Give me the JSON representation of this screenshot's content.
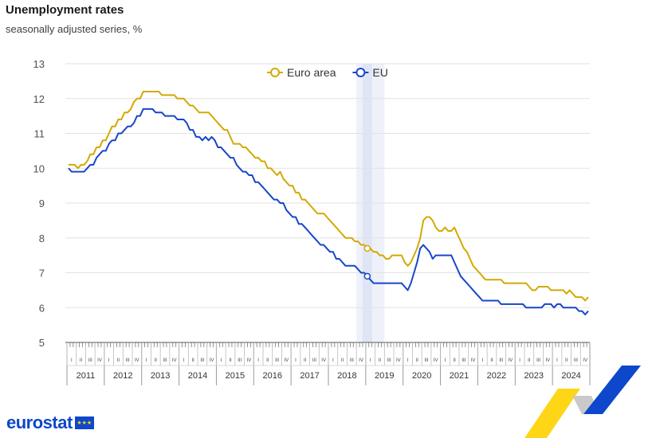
{
  "header": {
    "title": "Unemployment rates",
    "subtitle": "seasonally adjusted series, %"
  },
  "branding": {
    "logo_text": "eurostat"
  },
  "colors": {
    "euro_area": "#d4a900",
    "eu": "#1746c9",
    "grid": "#e2e2e2",
    "highlight_band": "#e8edf8"
  },
  "chart_data": {
    "type": "line",
    "title": "Unemployment rates",
    "subtitle": "seasonally adjusted series, %",
    "ylim": [
      5,
      13
    ],
    "y_ticks": [
      5,
      6,
      7,
      8,
      9,
      10,
      11,
      12,
      13
    ],
    "grid": true,
    "legend_position": "top-center",
    "years": [
      "2011",
      "2012",
      "2013",
      "2014",
      "2015",
      "2016",
      "2017",
      "2018",
      "2019",
      "2020",
      "2021",
      "2022",
      "2023",
      "2024"
    ],
    "quarters": [
      "I",
      "II",
      "III",
      "IV"
    ],
    "x_start": "2011-01",
    "x_end": "2024-12",
    "highlight": {
      "period": "2019-01",
      "band_from": "2018-10",
      "band_to": "2019-06"
    },
    "series": [
      {
        "name": "Euro area",
        "color": "#d4a900",
        "points": [
          [
            "2011-01",
            10.1
          ],
          [
            "2011-03",
            10.1
          ],
          [
            "2011-04",
            10.0
          ],
          [
            "2011-05",
            10.1
          ],
          [
            "2011-06",
            10.1
          ],
          [
            "2011-07",
            10.2
          ],
          [
            "2011-08",
            10.4
          ],
          [
            "2011-10",
            10.6
          ],
          [
            "2011-12",
            10.8
          ],
          [
            "2012-02",
            11.0
          ],
          [
            "2012-03",
            11.2
          ],
          [
            "2012-05",
            11.4
          ],
          [
            "2012-07",
            11.6
          ],
          [
            "2012-08",
            11.6
          ],
          [
            "2012-09",
            11.7
          ],
          [
            "2012-10",
            11.9
          ],
          [
            "2012-11",
            12.0
          ],
          [
            "2012-12",
            12.0
          ],
          [
            "2013-01",
            12.2
          ],
          [
            "2013-06",
            12.2
          ],
          [
            "2013-07",
            12.1
          ],
          [
            "2013-11",
            12.1
          ],
          [
            "2013-12",
            12.0
          ],
          [
            "2014-02",
            12.0
          ],
          [
            "2014-03",
            11.9
          ],
          [
            "2014-04",
            11.8
          ],
          [
            "2014-05",
            11.8
          ],
          [
            "2014-06",
            11.7
          ],
          [
            "2014-07",
            11.6
          ],
          [
            "2014-10",
            11.6
          ],
          [
            "2014-11",
            11.5
          ],
          [
            "2014-12",
            11.4
          ],
          [
            "2015-01",
            11.3
          ],
          [
            "2015-02",
            11.2
          ],
          [
            "2015-03",
            11.1
          ],
          [
            "2015-04",
            11.1
          ],
          [
            "2015-05",
            10.9
          ],
          [
            "2015-06",
            10.7
          ],
          [
            "2015-08",
            10.7
          ],
          [
            "2015-09",
            10.6
          ],
          [
            "2015-10",
            10.6
          ],
          [
            "2015-11",
            10.5
          ],
          [
            "2015-12",
            10.4
          ],
          [
            "2016-01",
            10.3
          ],
          [
            "2016-02",
            10.3
          ],
          [
            "2016-03",
            10.2
          ],
          [
            "2016-04",
            10.2
          ],
          [
            "2016-05",
            10.0
          ],
          [
            "2016-06",
            10.0
          ],
          [
            "2016-07",
            9.9
          ],
          [
            "2016-08",
            9.8
          ],
          [
            "2016-09",
            9.9
          ],
          [
            "2016-10",
            9.7
          ],
          [
            "2016-11",
            9.6
          ],
          [
            "2016-12",
            9.5
          ],
          [
            "2017-01",
            9.5
          ],
          [
            "2017-02",
            9.3
          ],
          [
            "2017-03",
            9.3
          ],
          [
            "2017-04",
            9.1
          ],
          [
            "2017-05",
            9.1
          ],
          [
            "2017-06",
            9.0
          ],
          [
            "2017-07",
            8.9
          ],
          [
            "2017-08",
            8.8
          ],
          [
            "2017-09",
            8.7
          ],
          [
            "2017-11",
            8.7
          ],
          [
            "2017-12",
            8.6
          ],
          [
            "2018-01",
            8.5
          ],
          [
            "2018-02",
            8.4
          ],
          [
            "2018-03",
            8.3
          ],
          [
            "2018-04",
            8.2
          ],
          [
            "2018-05",
            8.1
          ],
          [
            "2018-06",
            8.0
          ],
          [
            "2018-08",
            8.0
          ],
          [
            "2018-09",
            7.9
          ],
          [
            "2018-10",
            7.9
          ],
          [
            "2018-11",
            7.8
          ],
          [
            "2018-12",
            7.8
          ],
          [
            "2019-01",
            7.7
          ],
          [
            "2019-02",
            7.7
          ],
          [
            "2019-03",
            7.6
          ],
          [
            "2019-04",
            7.6
          ],
          [
            "2019-05",
            7.5
          ],
          [
            "2019-06",
            7.5
          ],
          [
            "2019-07",
            7.4
          ],
          [
            "2019-08",
            7.4
          ],
          [
            "2019-09",
            7.5
          ],
          [
            "2019-12",
            7.5
          ],
          [
            "2020-01",
            7.3
          ],
          [
            "2020-02",
            7.2
          ],
          [
            "2020-03",
            7.3
          ],
          [
            "2020-04",
            7.5
          ],
          [
            "2020-05",
            7.7
          ],
          [
            "2020-06",
            8.0
          ],
          [
            "2020-07",
            8.5
          ],
          [
            "2020-08",
            8.6
          ],
          [
            "2020-09",
            8.6
          ],
          [
            "2020-10",
            8.5
          ],
          [
            "2020-11",
            8.3
          ],
          [
            "2020-12",
            8.2
          ],
          [
            "2021-01",
            8.2
          ],
          [
            "2021-02",
            8.3
          ],
          [
            "2021-03",
            8.2
          ],
          [
            "2021-04",
            8.2
          ],
          [
            "2021-05",
            8.3
          ],
          [
            "2021-06",
            8.1
          ],
          [
            "2021-07",
            7.9
          ],
          [
            "2021-08",
            7.7
          ],
          [
            "2021-09",
            7.6
          ],
          [
            "2021-10",
            7.4
          ],
          [
            "2021-11",
            7.2
          ],
          [
            "2021-12",
            7.1
          ],
          [
            "2022-01",
            7.0
          ],
          [
            "2022-02",
            6.9
          ],
          [
            "2022-03",
            6.8
          ],
          [
            "2022-08",
            6.8
          ],
          [
            "2022-09",
            6.7
          ],
          [
            "2023-04",
            6.7
          ],
          [
            "2023-05",
            6.6
          ],
          [
            "2023-06",
            6.5
          ],
          [
            "2023-07",
            6.5
          ],
          [
            "2023-08",
            6.6
          ],
          [
            "2023-11",
            6.6
          ],
          [
            "2023-12",
            6.5
          ],
          [
            "2024-04",
            6.5
          ],
          [
            "2024-05",
            6.4
          ],
          [
            "2024-06",
            6.5
          ],
          [
            "2024-07",
            6.4
          ],
          [
            "2024-08",
            6.3
          ],
          [
            "2024-10",
            6.3
          ],
          [
            "2024-11",
            6.2
          ],
          [
            "2024-12",
            6.3
          ]
        ]
      },
      {
        "name": "EU",
        "color": "#1746c9",
        "points": [
          [
            "2011-01",
            10.0
          ],
          [
            "2011-02",
            9.9
          ],
          [
            "2011-06",
            9.9
          ],
          [
            "2011-07",
            10.0
          ],
          [
            "2011-08",
            10.1
          ],
          [
            "2011-10",
            10.3
          ],
          [
            "2011-11",
            10.4
          ],
          [
            "2011-12",
            10.5
          ],
          [
            "2012-01",
            10.5
          ],
          [
            "2012-02",
            10.7
          ],
          [
            "2012-03",
            10.8
          ],
          [
            "2012-05",
            11.0
          ],
          [
            "2012-06",
            11.0
          ],
          [
            "2012-07",
            11.1
          ],
          [
            "2012-08",
            11.2
          ],
          [
            "2012-09",
            11.2
          ],
          [
            "2012-10",
            11.3
          ],
          [
            "2012-11",
            11.5
          ],
          [
            "2012-12",
            11.5
          ],
          [
            "2013-01",
            11.7
          ],
          [
            "2013-04",
            11.7
          ],
          [
            "2013-05",
            11.6
          ],
          [
            "2013-07",
            11.6
          ],
          [
            "2013-08",
            11.5
          ],
          [
            "2013-11",
            11.5
          ],
          [
            "2013-12",
            11.4
          ],
          [
            "2014-02",
            11.4
          ],
          [
            "2014-03",
            11.3
          ],
          [
            "2014-04",
            11.1
          ],
          [
            "2014-05",
            11.1
          ],
          [
            "2014-06",
            10.9
          ],
          [
            "2014-07",
            10.9
          ],
          [
            "2014-08",
            10.8
          ],
          [
            "2014-09",
            10.9
          ],
          [
            "2014-10",
            10.8
          ],
          [
            "2014-11",
            10.9
          ],
          [
            "2014-12",
            10.8
          ],
          [
            "2015-01",
            10.6
          ],
          [
            "2015-02",
            10.6
          ],
          [
            "2015-03",
            10.5
          ],
          [
            "2015-04",
            10.4
          ],
          [
            "2015-05",
            10.3
          ],
          [
            "2015-06",
            10.3
          ],
          [
            "2015-07",
            10.1
          ],
          [
            "2015-08",
            10.0
          ],
          [
            "2015-09",
            9.9
          ],
          [
            "2015-10",
            9.9
          ],
          [
            "2015-11",
            9.8
          ],
          [
            "2015-12",
            9.8
          ],
          [
            "2016-01",
            9.6
          ],
          [
            "2016-02",
            9.6
          ],
          [
            "2016-03",
            9.5
          ],
          [
            "2016-04",
            9.4
          ],
          [
            "2016-05",
            9.3
          ],
          [
            "2016-06",
            9.2
          ],
          [
            "2016-07",
            9.1
          ],
          [
            "2016-08",
            9.1
          ],
          [
            "2016-09",
            9.0
          ],
          [
            "2016-10",
            9.0
          ],
          [
            "2016-11",
            8.8
          ],
          [
            "2016-12",
            8.7
          ],
          [
            "2017-01",
            8.6
          ],
          [
            "2017-02",
            8.6
          ],
          [
            "2017-03",
            8.4
          ],
          [
            "2017-04",
            8.4
          ],
          [
            "2017-05",
            8.3
          ],
          [
            "2017-06",
            8.2
          ],
          [
            "2017-07",
            8.1
          ],
          [
            "2017-08",
            8.0
          ],
          [
            "2017-09",
            7.9
          ],
          [
            "2017-10",
            7.8
          ],
          [
            "2017-11",
            7.8
          ],
          [
            "2017-12",
            7.7
          ],
          [
            "2018-01",
            7.6
          ],
          [
            "2018-02",
            7.6
          ],
          [
            "2018-03",
            7.4
          ],
          [
            "2018-04",
            7.4
          ],
          [
            "2018-05",
            7.3
          ],
          [
            "2018-06",
            7.2
          ],
          [
            "2018-09",
            7.2
          ],
          [
            "2018-10",
            7.1
          ],
          [
            "2018-11",
            7.0
          ],
          [
            "2018-12",
            7.0
          ],
          [
            "2019-01",
            6.9
          ],
          [
            "2019-02",
            6.8
          ],
          [
            "2019-03",
            6.7
          ],
          [
            "2019-12",
            6.7
          ],
          [
            "2020-01",
            6.6
          ],
          [
            "2020-02",
            6.5
          ],
          [
            "2020-03",
            6.7
          ],
          [
            "2020-04",
            7.0
          ],
          [
            "2020-05",
            7.3
          ],
          [
            "2020-06",
            7.7
          ],
          [
            "2020-07",
            7.8
          ],
          [
            "2020-08",
            7.7
          ],
          [
            "2020-09",
            7.6
          ],
          [
            "2020-10",
            7.4
          ],
          [
            "2020-11",
            7.5
          ],
          [
            "2021-04",
            7.5
          ],
          [
            "2021-05",
            7.3
          ],
          [
            "2021-06",
            7.1
          ],
          [
            "2021-07",
            6.9
          ],
          [
            "2021-08",
            6.8
          ],
          [
            "2021-09",
            6.7
          ],
          [
            "2021-10",
            6.6
          ],
          [
            "2021-11",
            6.5
          ],
          [
            "2021-12",
            6.4
          ],
          [
            "2022-01",
            6.3
          ],
          [
            "2022-02",
            6.2
          ],
          [
            "2022-07",
            6.2
          ],
          [
            "2022-08",
            6.1
          ],
          [
            "2023-03",
            6.1
          ],
          [
            "2023-04",
            6.0
          ],
          [
            "2023-09",
            6.0
          ],
          [
            "2023-10",
            6.1
          ],
          [
            "2023-12",
            6.1
          ],
          [
            "2024-01",
            6.0
          ],
          [
            "2024-02",
            6.1
          ],
          [
            "2024-03",
            6.1
          ],
          [
            "2024-04",
            6.0
          ],
          [
            "2024-08",
            6.0
          ],
          [
            "2024-09",
            5.9
          ],
          [
            "2024-10",
            5.9
          ],
          [
            "2024-11",
            5.8
          ],
          [
            "2024-12",
            5.9
          ]
        ]
      }
    ]
  }
}
